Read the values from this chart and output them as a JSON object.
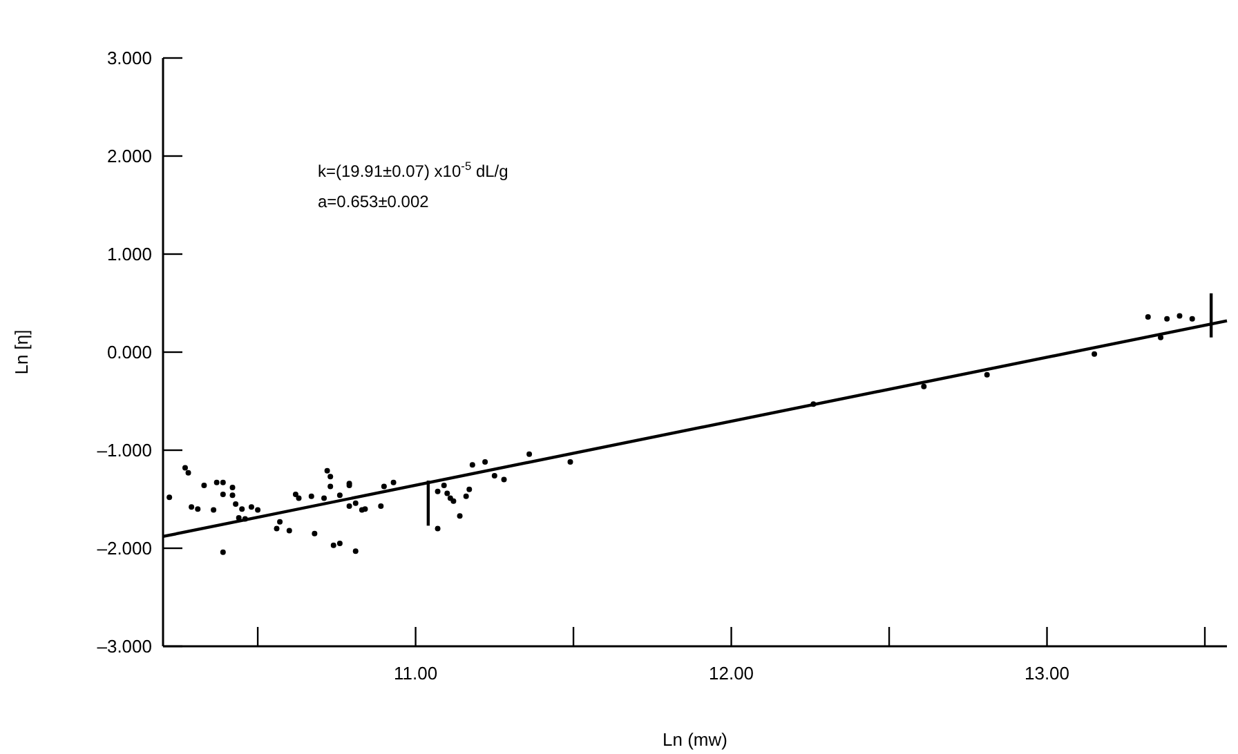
{
  "chart_data": {
    "type": "scatter",
    "xlabel": "Ln  (mw)",
    "ylabel": "Ln  [η]",
    "annotations": [
      "k=(19.91±0.07)  x10$^{-5}$  dL/g",
      "a=0.653±0.002"
    ],
    "xlim": [
      10.2,
      13.57
    ],
    "xticks": [
      {
        "value": 10.5,
        "label": null
      },
      {
        "value": 11,
        "label": "11.00"
      },
      {
        "value": 11.5,
        "label": null
      },
      {
        "value": 12,
        "label": "12.00"
      },
      {
        "value": 12.5,
        "label": null
      },
      {
        "value": 13,
        "label": "13.00"
      },
      {
        "value": 13.5,
        "label": null
      }
    ],
    "ylim": [
      -3,
      3
    ],
    "yticks": [
      {
        "value": 3,
        "label": "3.000"
      },
      {
        "value": 2,
        "label": "2.000"
      },
      {
        "value": 1,
        "label": "1.000"
      },
      {
        "value": 0,
        "label": "0.000"
      },
      {
        "value": -1,
        "label": "–1.000"
      },
      {
        "value": -2,
        "label": "–2.000"
      },
      {
        "value": -3,
        "label": "–3.000"
      }
    ],
    "grid": false,
    "series": [
      {
        "marker": "circle",
        "color": "#000000",
        "x": [
          10.22,
          10.27,
          10.28,
          10.33,
          10.37,
          10.39,
          10.42,
          10.39,
          10.42,
          10.43,
          10.29,
          10.31,
          10.36,
          10.45,
          10.48,
          10.5,
          10.44,
          10.46,
          10.39,
          10.56,
          10.57,
          10.6,
          10.62,
          10.63,
          10.67,
          10.72,
          10.73,
          10.73,
          10.71,
          10.68,
          10.74,
          10.76,
          10.81,
          10.76,
          10.79,
          10.79,
          10.79,
          10.81,
          10.83,
          10.84,
          10.89,
          10.9,
          10.93,
          11.07,
          11.07,
          11.09,
          11.1,
          11.11,
          11.12,
          11.14,
          11.16,
          11.17,
          11.18,
          11.22,
          11.25,
          11.28,
          11.36,
          11.49,
          12.26,
          12.61,
          12.81,
          13.15,
          13.32,
          13.38,
          13.42,
          13.46,
          13.36
        ],
        "values": [
          -1.48,
          -1.18,
          -1.23,
          -1.36,
          -1.33,
          -1.33,
          -1.38,
          -1.45,
          -1.46,
          -1.55,
          -1.58,
          -1.6,
          -1.61,
          -1.6,
          -1.58,
          -1.61,
          -1.69,
          -1.7,
          -2.04,
          -1.8,
          -1.73,
          -1.82,
          -1.45,
          -1.49,
          -1.47,
          -1.21,
          -1.27,
          -1.37,
          -1.49,
          -1.85,
          -1.97,
          -1.95,
          -2.03,
          -1.46,
          -1.34,
          -1.36,
          -1.57,
          -1.54,
          -1.61,
          -1.6,
          -1.57,
          -1.37,
          -1.33,
          -1.8,
          -1.42,
          -1.36,
          -1.44,
          -1.49,
          -1.52,
          -1.67,
          -1.47,
          -1.4,
          -1.15,
          -1.12,
          -1.26,
          -1.3,
          -1.04,
          -1.12,
          -0.53,
          -0.35,
          -0.23,
          -0.02,
          0.36,
          0.34,
          0.37,
          0.34,
          0.15
        ]
      },
      {
        "type": "line",
        "marker": "none",
        "color": "#000000",
        "x": [
          10.2,
          13.57
        ],
        "values": [
          -1.88,
          0.32
        ]
      },
      {
        "type": "line",
        "marker": "none",
        "color": "#000000",
        "x": [
          11.04,
          11.04
        ],
        "values": [
          -1.31,
          -1.77
        ]
      },
      {
        "type": "line",
        "marker": "none",
        "color": "#000000",
        "x": [
          13.52,
          13.52
        ],
        "values": [
          0.6,
          0.15
        ]
      }
    ]
  }
}
